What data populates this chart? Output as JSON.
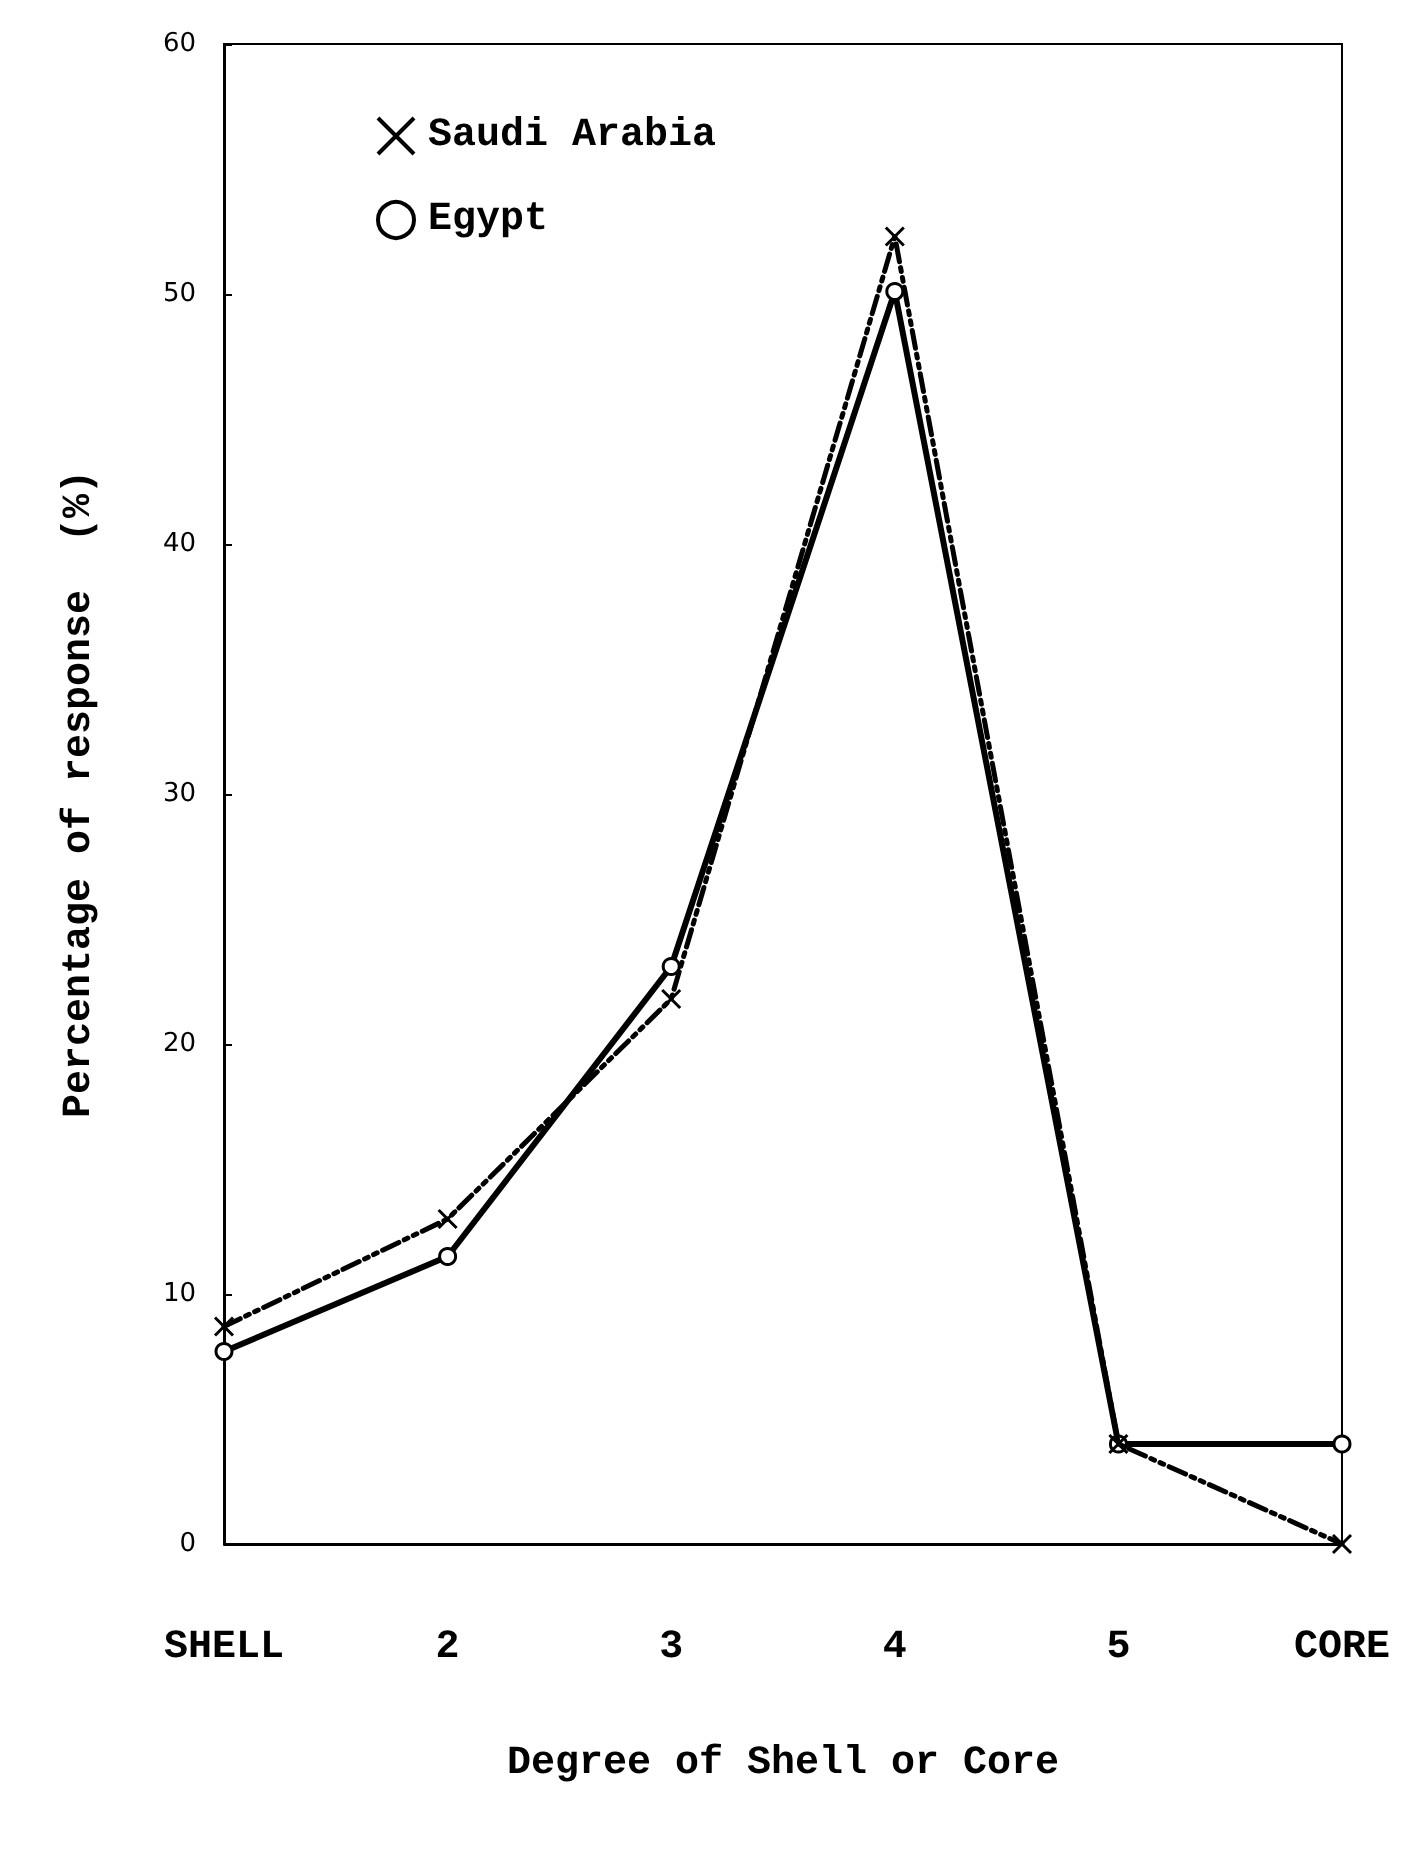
{
  "chart_data": {
    "type": "line",
    "xlabel": "Degree of Shell or Core",
    "ylabel": "Percentage of response  (%)",
    "categories": [
      "SHELL",
      "2",
      "3",
      "4",
      "5",
      "CORE"
    ],
    "series": [
      {
        "name": "Saudi Arabia",
        "color": "#000000",
        "marker": "cross",
        "line_style": "dashed",
        "values": [
          8.7,
          13.0,
          21.8,
          52.3,
          4.0,
          0
        ]
      },
      {
        "name": "Egypt",
        "color": "#000000",
        "marker": "circle",
        "line_style": "solid",
        "values": [
          7.7,
          11.5,
          23.1,
          50.1,
          4.0,
          4.0
        ]
      }
    ],
    "ylim": [
      0,
      60
    ],
    "yticks": [
      0,
      10,
      20,
      30,
      40,
      50,
      60
    ],
    "grid": false,
    "legend": "top left"
  }
}
